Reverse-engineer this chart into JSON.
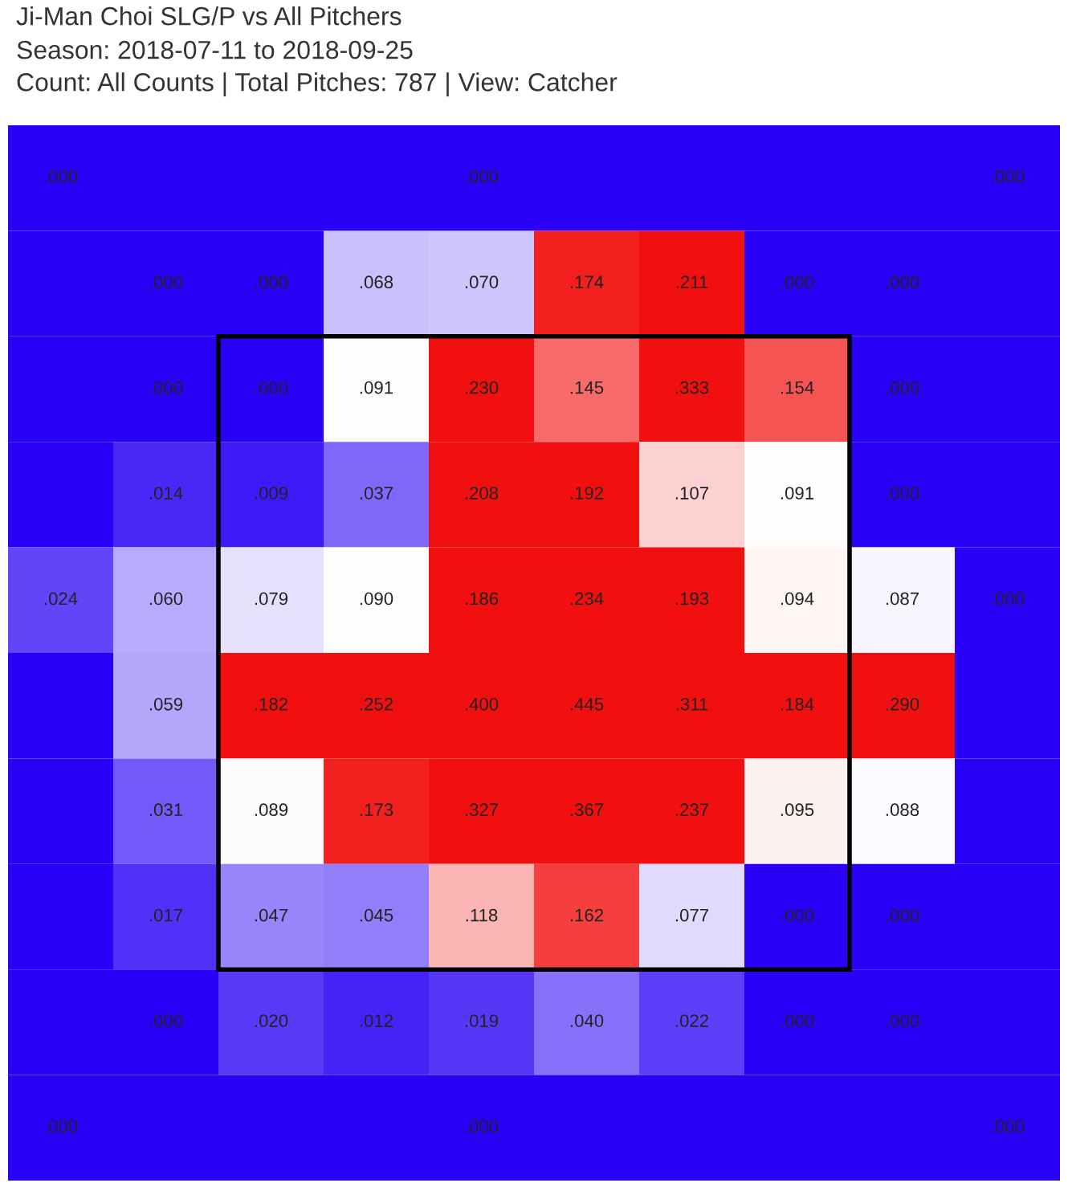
{
  "chart_data": {
    "type": "heatmap",
    "title": "Ji-Man Choi SLG/P vs All Pitchers",
    "subtitle": "Season: 2018-07-11 to 2018-09-25\nCount: All Counts | Total Pitches: 787 | View: Catcher",
    "categories": [
      null,
      null,
      null,
      null,
      null,
      null,
      null,
      null,
      null,
      null
    ],
    "y_categories": [
      null,
      null,
      null,
      null,
      null,
      null,
      null,
      null,
      null,
      null
    ],
    "cells": [
      [
        0,
        null,
        null,
        null,
        0,
        null,
        null,
        null,
        null,
        0
      ],
      [
        null,
        0,
        0,
        0.068,
        0.07,
        0.174,
        0.211,
        0,
        0,
        null
      ],
      [
        null,
        0,
        0,
        0.091,
        0.23,
        0.145,
        0.333,
        0.154,
        0,
        null
      ],
      [
        null,
        0.014,
        0.009,
        0.037,
        0.208,
        0.192,
        0.107,
        0.091,
        0,
        null
      ],
      [
        0.024,
        0.06,
        0.079,
        0.09,
        0.186,
        0.234,
        0.193,
        0.094,
        0.087,
        0
      ],
      [
        null,
        0.059,
        0.182,
        0.252,
        0.4,
        0.445,
        0.311,
        0.184,
        0.29,
        null
      ],
      [
        null,
        0.031,
        0.089,
        0.173,
        0.327,
        0.367,
        0.237,
        0.095,
        0.088,
        null
      ],
      [
        null,
        0.017,
        0.047,
        0.045,
        0.118,
        0.162,
        0.077,
        0,
        0,
        null
      ],
      [
        null,
        0,
        0.02,
        0.012,
        0.019,
        0.04,
        0.022,
        0,
        0,
        null
      ],
      [
        0,
        null,
        null,
        null,
        0,
        null,
        null,
        null,
        null,
        0
      ]
    ],
    "cell_labels": [
      [
        ".000",
        null,
        null,
        null,
        ".000",
        null,
        null,
        null,
        null,
        ".000"
      ],
      [
        null,
        ".000",
        ".000",
        ".068",
        ".070",
        ".174",
        ".211",
        ".000",
        ".000",
        null
      ],
      [
        null,
        ".000",
        ".000",
        ".091",
        ".230",
        ".145",
        ".333",
        ".154",
        ".000",
        null
      ],
      [
        null,
        ".014",
        ".009",
        ".037",
        ".208",
        ".192",
        ".107",
        ".091",
        ".000",
        null
      ],
      [
        ".024",
        ".060",
        ".079",
        ".090",
        ".186",
        ".234",
        ".193",
        ".094",
        ".087",
        ".000"
      ],
      [
        null,
        ".059",
        ".182",
        ".252",
        ".400",
        ".445",
        ".311",
        ".184",
        ".290",
        null
      ],
      [
        null,
        ".031",
        ".089",
        ".173",
        ".327",
        ".367",
        ".237",
        ".095",
        ".088",
        null
      ],
      [
        null,
        ".017",
        ".047",
        ".045",
        ".118",
        ".162",
        ".077",
        ".000",
        ".000",
        null
      ],
      [
        null,
        ".000",
        ".020",
        ".012",
        ".019",
        ".040",
        ".022",
        ".000",
        ".000",
        null
      ],
      [
        ".000",
        null,
        null,
        null,
        ".000",
        null,
        null,
        null,
        null,
        ".000"
      ]
    ]
  }
}
